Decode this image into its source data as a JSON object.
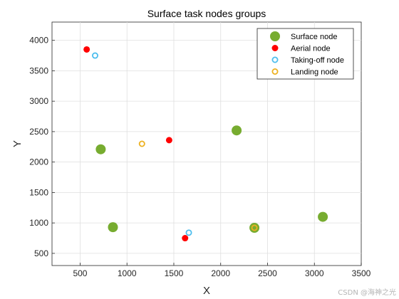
{
  "chart_data": {
    "type": "scatter",
    "title": "Surface task nodes groups",
    "xlabel": "X",
    "ylabel": "Y",
    "xlim": [
      200,
      3500
    ],
    "ylim": [
      300,
      4300
    ],
    "xticks": [
      500,
      1000,
      1500,
      2000,
      2500,
      3000,
      3500
    ],
    "yticks": [
      500,
      1000,
      1500,
      2000,
      2500,
      3000,
      3500,
      4000
    ],
    "grid": true,
    "legend_position": "top-right",
    "series": [
      {
        "name": "Surface node",
        "marker": "filled-circle-large",
        "color": "#77ac30",
        "points": [
          [
            720,
            2210
          ],
          [
            850,
            930
          ],
          [
            2170,
            2520
          ],
          [
            2360,
            920
          ],
          [
            3090,
            1100
          ]
        ]
      },
      {
        "name": "Aerial node",
        "marker": "filled-circle",
        "color": "#ff0000",
        "points": [
          [
            570,
            3850
          ],
          [
            1450,
            2360
          ],
          [
            1620,
            750
          ]
        ]
      },
      {
        "name": "Taking-off node",
        "marker": "open-circle",
        "color": "#4dbeee",
        "points": [
          [
            660,
            3750
          ],
          [
            1660,
            840
          ]
        ]
      },
      {
        "name": "Landing node",
        "marker": "open-circle",
        "color": "#edb120",
        "points": [
          [
            1160,
            2300
          ],
          [
            2360,
            920
          ]
        ]
      }
    ]
  },
  "watermark": "CSDN @海神之光"
}
